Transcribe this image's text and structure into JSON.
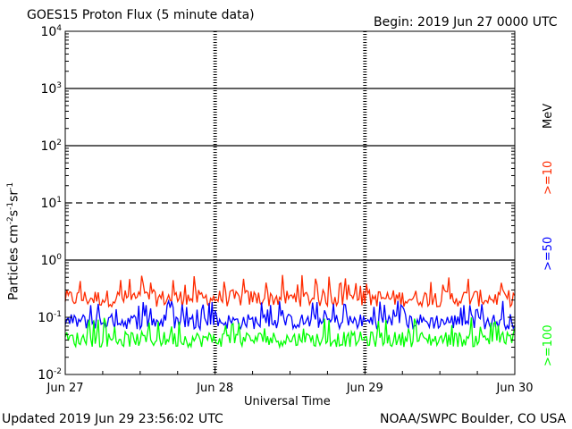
{
  "header": {
    "title": "GOES15 Proton Flux (5 minute data)",
    "begin": "Begin: 2019 Jun 27 0000 UTC"
  },
  "footer": {
    "updated": "Updated 2019 Jun 29 23:56:02 UTC",
    "credit": "NOAA/SWPC Boulder, CO USA"
  },
  "chart_data": {
    "type": "line",
    "title": "GOES15 Proton Flux (5 minute data)",
    "xlabel": "Universal Time",
    "ylabel_parts": [
      "Particles cm",
      "-2",
      "s",
      "-1",
      "sr",
      "-1"
    ],
    "y_scale": "log",
    "ylim": [
      0.01,
      10000
    ],
    "yticks": [
      {
        "base": "10",
        "exp": "4"
      },
      {
        "base": "10",
        "exp": "3"
      },
      {
        "base": "10",
        "exp": "2"
      },
      {
        "base": "10",
        "exp": "1"
      },
      {
        "base": "10",
        "exp": "0"
      },
      {
        "base": "10",
        "exp": "-1"
      },
      {
        "base": "10",
        "exp": "-2"
      }
    ],
    "x_range": [
      "2019-06-27 00:00",
      "2019-06-30 00:00"
    ],
    "x_ticks": [
      "Jun 27",
      "Jun 28",
      "Jun 29",
      "Jun 30"
    ],
    "threshold_lines": [
      {
        "value": 1000,
        "style": "solid"
      },
      {
        "value": 100,
        "style": "solid"
      },
      {
        "value": 10,
        "style": "dashed"
      },
      {
        "value": 1,
        "style": "solid"
      }
    ],
    "legend_unit": "MeV",
    "series": [
      {
        "name": ">=10",
        "color": "#ff2a00",
        "baseline": 0.22,
        "min": 0.12,
        "max": 0.55
      },
      {
        "name": ">=50",
        "color": "#0000ff",
        "baseline": 0.085,
        "min": 0.05,
        "max": 0.2
      },
      {
        "name": ">=100",
        "color": "#00ff00",
        "baseline": 0.04,
        "min": 0.025,
        "max": 0.1
      }
    ]
  }
}
